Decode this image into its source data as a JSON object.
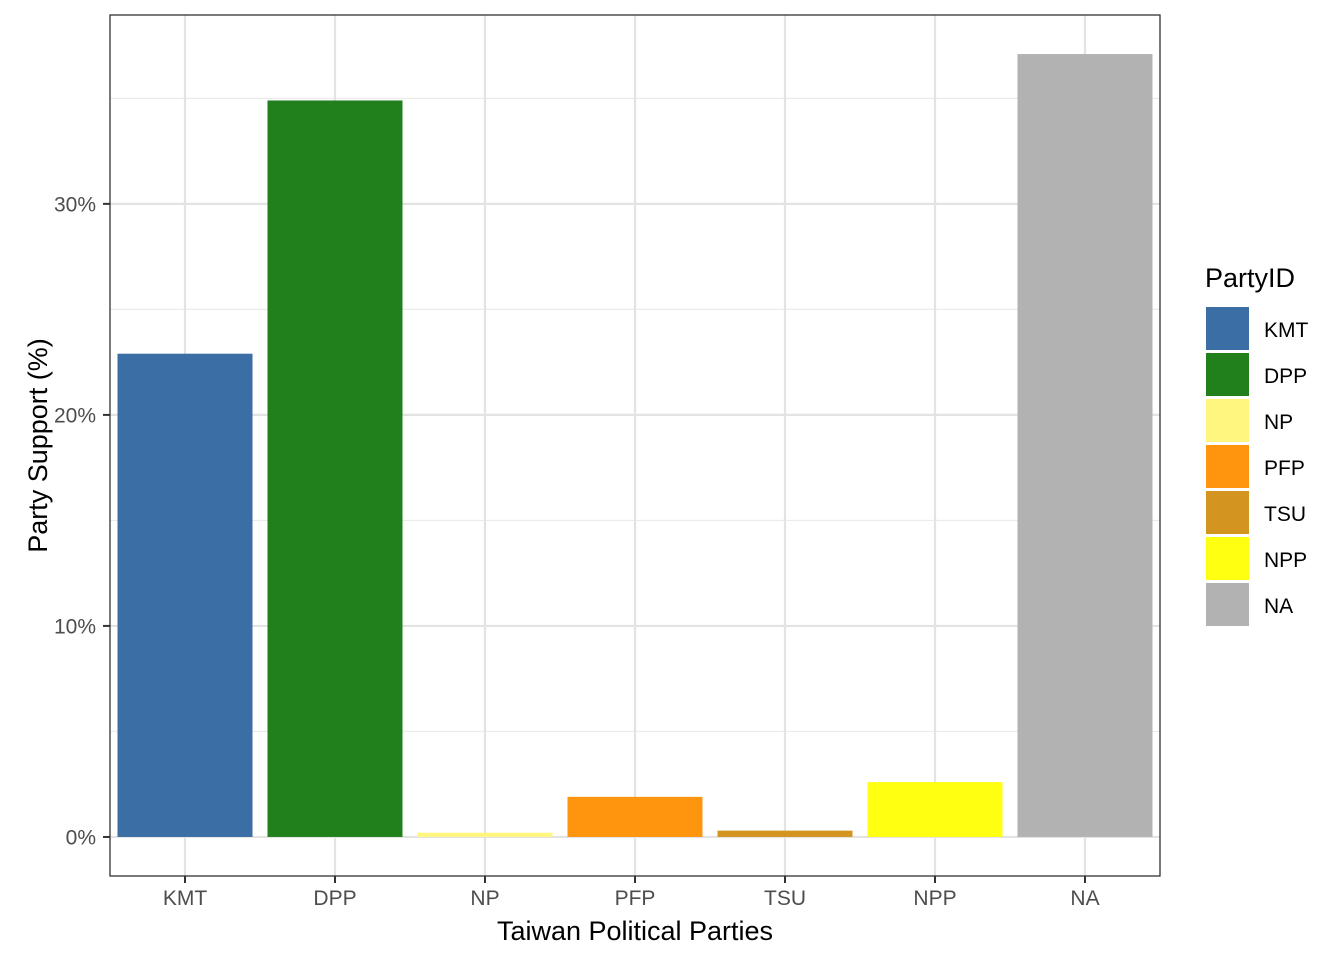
{
  "chart_data": {
    "type": "bar",
    "categories": [
      "KMT",
      "DPP",
      "NP",
      "PFP",
      "TSU",
      "NPP",
      "NA"
    ],
    "values": [
      22.9,
      34.9,
      0.2,
      1.9,
      0.3,
      2.6,
      37.1
    ],
    "colors": [
      "#3A6EA5",
      "#21801C",
      "#FFF680",
      "#FF940E",
      "#D3951F",
      "#FFFF11",
      "#B2B2B2"
    ],
    "xlabel": "Taiwan Political Parties",
    "ylabel": "Party Support (%)",
    "ylim": [
      -1.85,
      38.95
    ],
    "yticks": [
      0,
      10,
      20,
      30
    ],
    "ytick_labels": [
      "0%",
      "10%",
      "20%",
      "30%"
    ],
    "minor_yticks": [
      5,
      15,
      25,
      35
    ],
    "grid": true,
    "legend": {
      "title": "PartyID",
      "position": "right",
      "entries": [
        "KMT",
        "DPP",
        "NP",
        "PFP",
        "TSU",
        "NPP",
        "NA"
      ]
    }
  }
}
